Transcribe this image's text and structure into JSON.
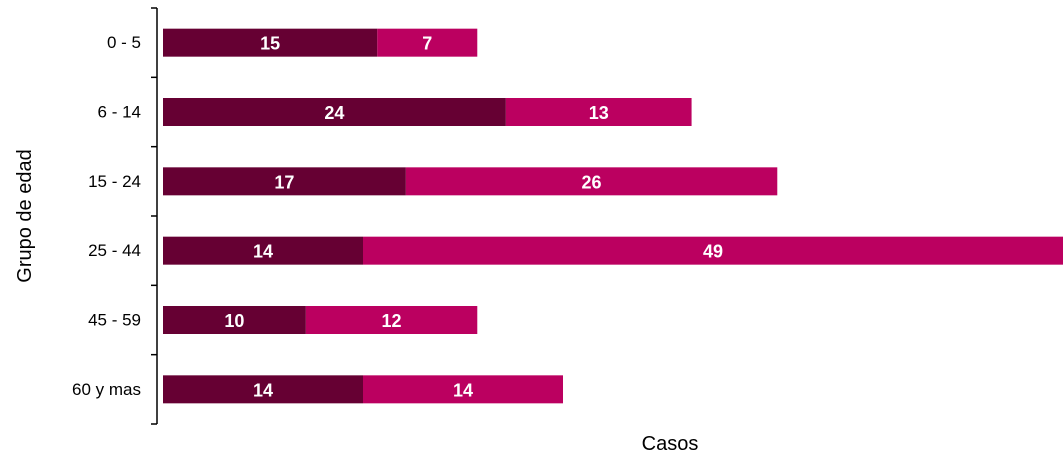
{
  "chart_data": {
    "type": "bar",
    "orientation": "horizontal",
    "stacked": true,
    "categories": [
      "0 - 5",
      "6 - 14",
      "15 - 24",
      "25 - 44",
      "45 - 59",
      "60 y mas"
    ],
    "series": [
      {
        "values": [
          15,
          24,
          17,
          14,
          10,
          14
        ],
        "color": "#660033"
      },
      {
        "values": [
          7,
          13,
          26,
          49,
          12,
          14
        ],
        "color": "#bb0060"
      }
    ],
    "title": "",
    "xlabel": "Casos",
    "ylabel": "Grupo de edad",
    "xlim": [
      0,
      63
    ],
    "grid": false,
    "legend": "none",
    "data_labels": true
  }
}
